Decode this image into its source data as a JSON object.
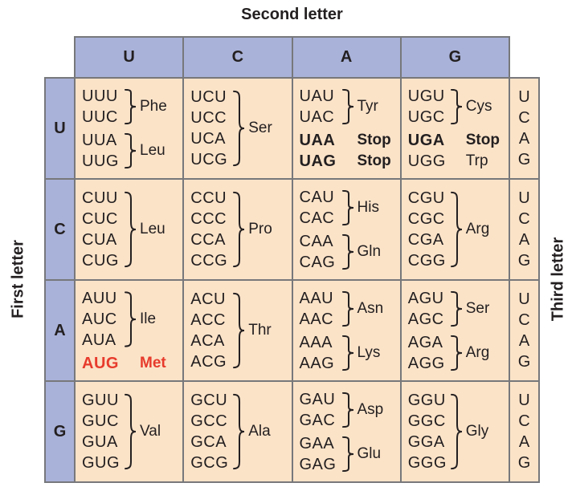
{
  "title": "Second letter",
  "side_labels": {
    "left": "First letter",
    "right": "Third letter"
  },
  "column_headers": [
    "U",
    "C",
    "A",
    "G"
  ],
  "row_headers": [
    "U",
    "C",
    "A",
    "G"
  ],
  "third_letters": [
    "U",
    "C",
    "A",
    "G"
  ],
  "colors": {
    "header_bg": "#a9b2d8",
    "cell_bg": "#fbe3c8",
    "grid_border": "#77787b",
    "text": "#231f20",
    "start_codon_red": "#e73b2c"
  },
  "rows": [
    {
      "first": "U",
      "cells": [
        {
          "groups": [
            {
              "codons": [
                "UUU",
                "UUC"
              ],
              "brace": true,
              "label": "Phe"
            },
            {
              "codons": [
                "UUA",
                "UUG"
              ],
              "brace": true,
              "label": "Leu"
            }
          ]
        },
        {
          "groups": [
            {
              "codons": [
                "UCU",
                "UCC",
                "UCA",
                "UCG"
              ],
              "brace": true,
              "label": "Ser"
            }
          ]
        },
        {
          "groups": [
            {
              "codons": [
                "UAU",
                "UAC"
              ],
              "brace": true,
              "label": "Tyr"
            },
            {
              "lines": [
                {
                  "codon": "UAA",
                  "label": "Stop",
                  "bold": true
                },
                {
                  "codon": "UAG",
                  "label": "Stop",
                  "bold": true
                }
              ]
            }
          ]
        },
        {
          "groups": [
            {
              "codons": [
                "UGU",
                "UGC"
              ],
              "brace": true,
              "label": "Cys"
            },
            {
              "lines": [
                {
                  "codon": "UGA",
                  "label": "Stop",
                  "bold": true
                },
                {
                  "codon": "UGG",
                  "label": "Trp",
                  "bold": false
                }
              ]
            }
          ]
        }
      ]
    },
    {
      "first": "C",
      "cells": [
        {
          "groups": [
            {
              "codons": [
                "CUU",
                "CUC",
                "CUA",
                "CUG"
              ],
              "brace": true,
              "label": "Leu"
            }
          ]
        },
        {
          "groups": [
            {
              "codons": [
                "CCU",
                "CCC",
                "CCA",
                "CCG"
              ],
              "brace": true,
              "label": "Pro"
            }
          ]
        },
        {
          "groups": [
            {
              "codons": [
                "CAU",
                "CAC"
              ],
              "brace": true,
              "label": "His"
            },
            {
              "codons": [
                "CAA",
                "CAG"
              ],
              "brace": true,
              "label": "Gln"
            }
          ]
        },
        {
          "groups": [
            {
              "codons": [
                "CGU",
                "CGC",
                "CGA",
                "CGG"
              ],
              "brace": true,
              "label": "Arg"
            }
          ]
        }
      ]
    },
    {
      "first": "A",
      "cells": [
        {
          "groups": [
            {
              "codons": [
                "AUU",
                "AUC",
                "AUA"
              ],
              "brace": true,
              "label": "Ile"
            },
            {
              "lines": [
                {
                  "codon": "AUG",
                  "label": "Met",
                  "bold": true,
                  "red": true
                }
              ]
            }
          ]
        },
        {
          "groups": [
            {
              "codons": [
                "ACU",
                "ACC",
                "ACA",
                "ACG"
              ],
              "brace": true,
              "label": "Thr"
            }
          ]
        },
        {
          "groups": [
            {
              "codons": [
                "AAU",
                "AAC"
              ],
              "brace": true,
              "label": "Asn"
            },
            {
              "codons": [
                "AAA",
                "AAG"
              ],
              "brace": true,
              "label": "Lys"
            }
          ]
        },
        {
          "groups": [
            {
              "codons": [
                "AGU",
                "AGC"
              ],
              "brace": true,
              "label": "Ser"
            },
            {
              "codons": [
                "AGA",
                "AGG"
              ],
              "brace": true,
              "label": "Arg"
            }
          ]
        }
      ]
    },
    {
      "first": "G",
      "cells": [
        {
          "groups": [
            {
              "codons": [
                "GUU",
                "GUC",
                "GUA",
                "GUG"
              ],
              "brace": true,
              "label": "Val"
            }
          ]
        },
        {
          "groups": [
            {
              "codons": [
                "GCU",
                "GCC",
                "GCA",
                "GCG"
              ],
              "brace": true,
              "label": "Ala"
            }
          ]
        },
        {
          "groups": [
            {
              "codons": [
                "GAU",
                "GAC"
              ],
              "brace": true,
              "label": "Asp"
            },
            {
              "codons": [
                "GAA",
                "GAG"
              ],
              "brace": true,
              "label": "Glu"
            }
          ]
        },
        {
          "groups": [
            {
              "codons": [
                "GGU",
                "GGC",
                "GGA",
                "GGG"
              ],
              "brace": true,
              "label": "Gly"
            }
          ]
        }
      ]
    }
  ]
}
